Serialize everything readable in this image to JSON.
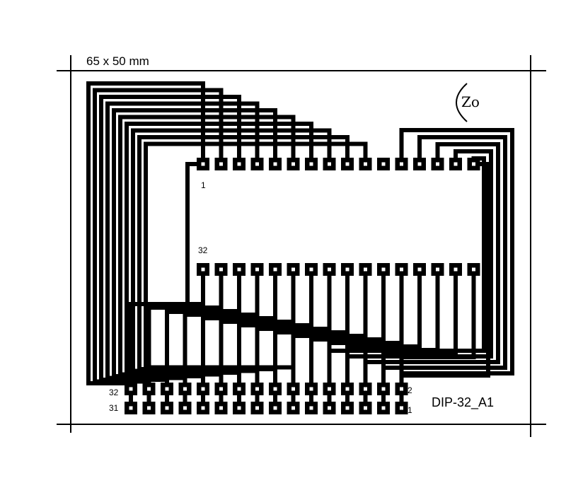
{
  "dimensions_label": "65 x 50 mm",
  "board_name": "DIP-32_A1",
  "logo_text": "Zo",
  "chip_pin_labels": {
    "first": "1",
    "last": "32"
  },
  "header_pin_labels": {
    "top_left": "32",
    "bottom_left": "31",
    "top_right": "2",
    "bottom_right": "1"
  },
  "colors": {
    "ink": "#000000",
    "paper": "#ffffff"
  },
  "chip": {
    "pins_per_row": 16
  },
  "header": {
    "pins_per_row": 16
  }
}
